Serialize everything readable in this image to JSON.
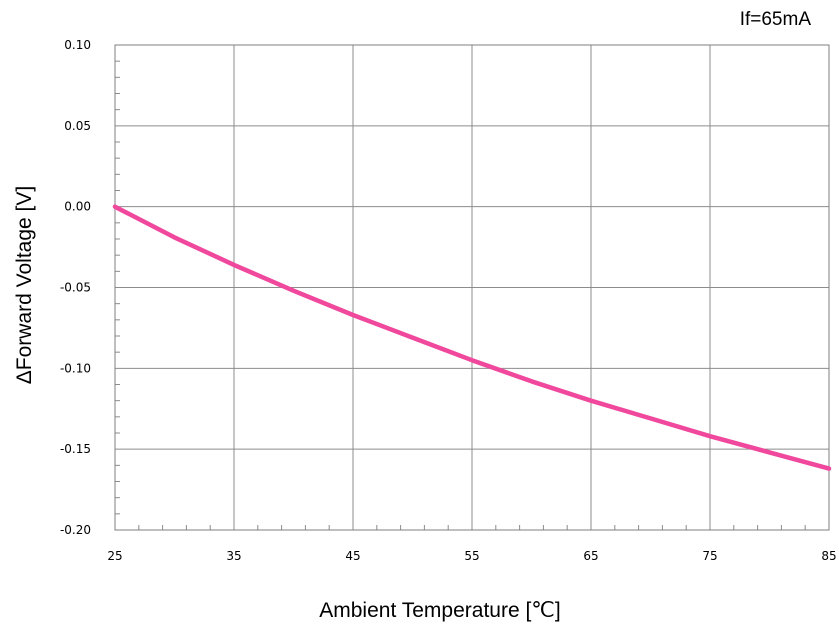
{
  "chart_data": {
    "type": "line",
    "title": "",
    "annotation": "If=65mA",
    "xlabel": "Ambient Temperature [℃]",
    "ylabel": "ΔForward Voltage [V]",
    "xlim": [
      25,
      85
    ],
    "ylim": [
      -0.2,
      0.1
    ],
    "x_ticks": [
      25,
      35,
      45,
      55,
      65,
      75,
      85
    ],
    "y_ticks": [
      0.1,
      0.05,
      0.0,
      -0.05,
      -0.1,
      -0.15,
      -0.2
    ],
    "x_tick_labels": [
      "25",
      "35",
      "45",
      "55",
      "65",
      "75",
      "85"
    ],
    "y_tick_labels": [
      "0.10",
      "0.05",
      "0.00",
      "-0.05",
      "-0.10",
      "-0.15",
      "-0.20"
    ],
    "grid": true,
    "series": [
      {
        "color": "#f0489c",
        "x": [
          25,
          30,
          35,
          40,
          45,
          50,
          55,
          60,
          65,
          70,
          75,
          80,
          85
        ],
        "y": [
          0.0,
          -0.019,
          -0.036,
          -0.052,
          -0.067,
          -0.081,
          -0.095,
          -0.108,
          -0.12,
          -0.131,
          -0.142,
          -0.152,
          -0.162
        ]
      }
    ]
  }
}
